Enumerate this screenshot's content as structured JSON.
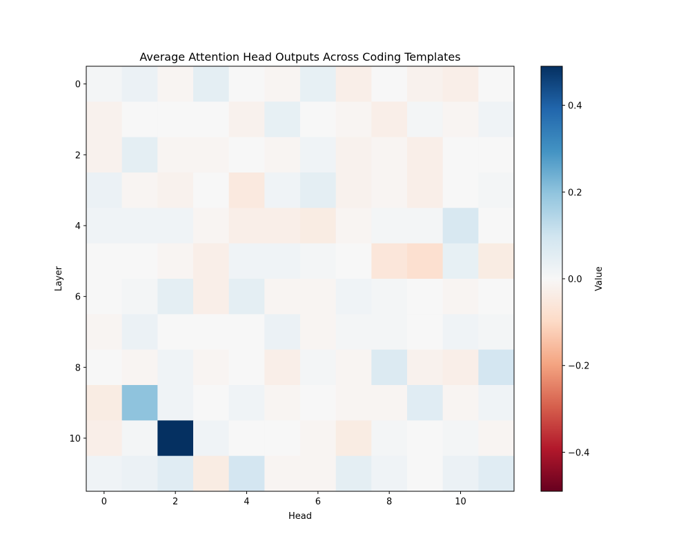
{
  "chart_data": {
    "type": "heatmap",
    "title": "Average Attention Head Outputs Across Coding Templates",
    "xlabel": "Head",
    "ylabel": "Layer",
    "x_ticks": [
      0,
      2,
      4,
      6,
      8,
      10
    ],
    "y_ticks": [
      0,
      2,
      4,
      6,
      8,
      10
    ],
    "rows": 12,
    "cols": 12,
    "values": [
      [
        0.01,
        0.03,
        -0.01,
        0.05,
        0.0,
        -0.01,
        0.04,
        -0.03,
        0.0,
        -0.02,
        -0.03,
        0.0
      ],
      [
        -0.02,
        0.0,
        0.0,
        0.0,
        -0.02,
        0.04,
        0.0,
        -0.01,
        -0.03,
        0.01,
        -0.01,
        0.02
      ],
      [
        -0.02,
        0.05,
        -0.01,
        -0.01,
        0.0,
        -0.01,
        0.02,
        -0.02,
        -0.01,
        -0.03,
        0.0,
        0.0
      ],
      [
        0.03,
        -0.01,
        -0.02,
        0.0,
        -0.05,
        0.02,
        0.05,
        -0.02,
        -0.01,
        -0.03,
        0.0,
        0.01
      ],
      [
        0.02,
        0.02,
        0.02,
        -0.01,
        -0.03,
        -0.03,
        -0.04,
        -0.01,
        0.01,
        0.01,
        0.08,
        0.0
      ],
      [
        0.0,
        0.0,
        -0.01,
        -0.03,
        0.02,
        0.02,
        0.01,
        0.0,
        -0.06,
        -0.08,
        0.04,
        -0.04
      ],
      [
        0.0,
        0.01,
        0.05,
        -0.03,
        0.05,
        -0.01,
        -0.01,
        0.02,
        0.01,
        0.0,
        -0.01,
        0.0
      ],
      [
        -0.01,
        0.03,
        0.0,
        0.0,
        0.0,
        0.03,
        -0.01,
        0.01,
        0.01,
        0.0,
        0.02,
        0.01
      ],
      [
        0.0,
        -0.01,
        0.02,
        -0.01,
        0.0,
        -0.03,
        0.01,
        -0.01,
        0.07,
        -0.02,
        -0.03,
        0.09
      ],
      [
        -0.04,
        0.2,
        0.02,
        0.0,
        0.02,
        -0.01,
        0.0,
        -0.01,
        -0.01,
        0.06,
        -0.01,
        0.02
      ],
      [
        -0.03,
        0.01,
        0.49,
        0.02,
        0.0,
        0.0,
        -0.01,
        -0.04,
        0.01,
        0.0,
        0.01,
        -0.01
      ],
      [
        0.02,
        0.03,
        0.06,
        -0.04,
        0.09,
        -0.01,
        -0.01,
        0.05,
        0.02,
        0.0,
        0.03,
        0.06
      ]
    ],
    "colorbar": {
      "label": "Value",
      "vmin": -0.49,
      "vmax": 0.49,
      "ticks": [
        0.4,
        0.2,
        0.0,
        -0.2,
        -0.4
      ],
      "tick_labels": [
        "0.4",
        "0.2",
        "0.0",
        "−0.2",
        "−0.4"
      ],
      "colormap": "RdBu",
      "colors": [
        "#67001f",
        "#b2182b",
        "#d6604d",
        "#f4a582",
        "#fddbc7",
        "#f7f7f7",
        "#d1e5f0",
        "#92c5de",
        "#4393c3",
        "#2166ac",
        "#053061"
      ]
    },
    "grid": false
  }
}
